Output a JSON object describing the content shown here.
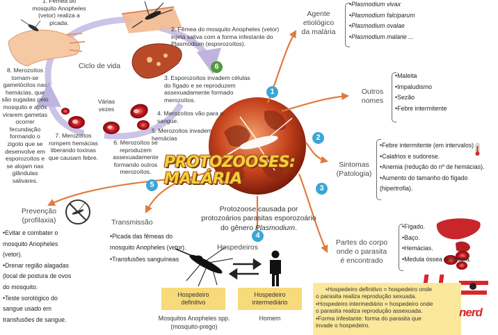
{
  "title": {
    "line1": "PROTOZOOSES:",
    "line2": "MALÁRIA"
  },
  "central": {
    "pre": "Protozoose causada por\nprotozoários parasitas esporozoário\ndo gênero ",
    "genus": "Plasmodium",
    "post": "."
  },
  "cycle": {
    "label": "Ciclo de vida",
    "varias": "Várias\nvezes",
    "step1": "1. Fêmea do\nmosquito Anopheles\n(vetor) realiza a\npicada.",
    "step2": "2. Fêmea do mosquito Anopheles (vetor)\ninjeta saliva com a forma infestante do\nPlasmodium (esporozoítos).",
    "step3": "3. Esporozoítos invadem células\ndo fígado e se reproduzem\nassexuadamente formado\nmerozoítos.",
    "step4": "4. Merozoítos vão para o\nsangue.",
    "step5": "5. Merozoítos invadem\nhemácias",
    "step6": "6. Merozoítos se\nreproduzem\nassexuadamente\nformando outros\nmerozoítos.",
    "step7": "7. Merozoítos\nrompem hemácias\nliberando toxinas\nque causam febre.",
    "step8": "8. Merozoítos\ntornam-se\ngametócitos nas\nhemácias, que\nsão sugadas pelo\nmosquito e após\nvirarem gametas\nocorrer\nfecundação\nformando o\nzigoto que se\ndesenvolve em\nesporozoítos e\nse alojam nas\nglândulas\nsalivares."
  },
  "markers": [
    "1",
    "2",
    "3",
    "4",
    "5",
    "6"
  ],
  "agente": {
    "heading": "Agente\netiológico\nda malária",
    "items": [
      "Plasmodium vivax",
      "Plasmodium falciparum",
      "Plasmodium ovalae",
      "Plasmodium malarie ..."
    ]
  },
  "nomes": {
    "heading": "Outros\nnomes",
    "items": [
      "Maleita",
      "Impaludismo",
      "Sezão",
      "Febre intermitente"
    ]
  },
  "sintomas": {
    "heading": "Sintomas\n(Patologia)",
    "items": [
      "Febre intermitente (em intervalos)",
      "Calafrios e sudorese.",
      "Anemia (redução do nº de hemácias).",
      "Aumento do tamanho do fígado",
      "(hipertrofia)."
    ]
  },
  "partes": {
    "heading": "Partes do corpo\nonde o parasita\né encontrado",
    "items": [
      "Fígado.",
      "Baço.",
      "Hemácias.",
      "Medula óssea vermelha."
    ]
  },
  "prevencao": {
    "heading": "Prevenção\n(profilaxia)",
    "items": [
      "•Evitar e combater o",
      "mosquito Anopheles",
      "(vetor).",
      "•Drenar região alagadas",
      "(local de postura de ovos",
      "do mosquito.",
      "•Teste sorológico do",
      "sangue usado em",
      "transfusões de sangue."
    ]
  },
  "transmissao": {
    "heading": "Transmissão",
    "items": [
      "•Picada das fêmeas do",
      "mosquito Anopheles (vetor).",
      "•Transfusões sanguíneas"
    ]
  },
  "hospedeiros": {
    "heading": "Hospedeiros",
    "definitivo": "Hospedeiro\ndefinitivo",
    "intermediario": "Hospedeiro\nintermediário",
    "mosquito_caption": "Mosquitos Anopheles spp.\n(mosquito-prego)",
    "homem_caption": "Homem"
  },
  "note": {
    "lines": [
      "Hospedeiro definitivo = hospedeiro onde",
      "o parasita realiza reprodução sexuada.",
      "•Hospedeiro intermediário = hospedeiro onde",
      "o parasita realiza reprodução assexuada.",
      "•Forma infestante: forma do parasita que",
      "invade o hospedeiro."
    ],
    "lead": "•"
  },
  "logo": {
    "text": "nerd"
  },
  "colors": {
    "arrow": "#e07a3c",
    "cycle": "#b5a8d8",
    "marker": "#3aa6d8",
    "note": "#fbe89a",
    "hostbox": "#f7da79",
    "logo": "#d8262c"
  }
}
